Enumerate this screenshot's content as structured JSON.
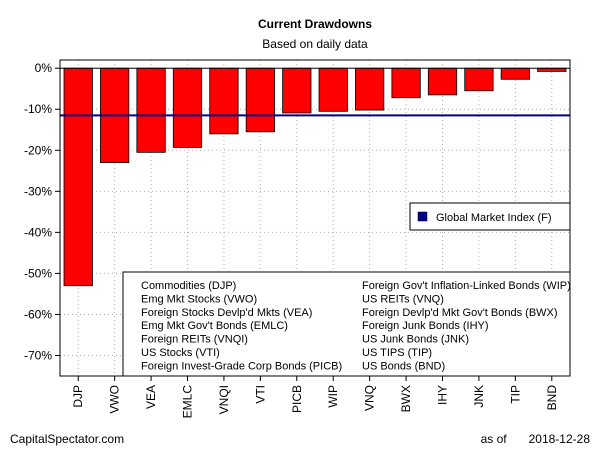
{
  "chart_data": {
    "type": "bar",
    "title": "Current Drawdowns",
    "subtitle": "Based on daily data",
    "categories": [
      "DJP",
      "VWO",
      "VEA",
      "EMLC",
      "VNQI",
      "VTI",
      "PICB",
      "WIP",
      "VNQ",
      "BWX",
      "IHY",
      "JNK",
      "TIP",
      "BND"
    ],
    "values": [
      -53,
      -23,
      -20.5,
      -19.3,
      -16,
      -15.5,
      -10.9,
      -10.5,
      -10.2,
      -7.2,
      -6.5,
      -5.5,
      -2.7,
      -0.8
    ],
    "bar_color": "#ff0000",
    "ylim": [
      -75,
      2
    ],
    "yticks": [
      0,
      -10,
      -20,
      -30,
      -40,
      -50,
      -60,
      -70
    ],
    "ytick_labels": [
      "0%",
      "-10%",
      "-20%",
      "-30%",
      "-40%",
      "-50%",
      "-60%",
      "-70%"
    ],
    "grid": true,
    "reference_line": {
      "value": -11.5,
      "label": "Global Market Index (F)",
      "color": "#00008b"
    },
    "legend_position": "bottom",
    "legend_left": [
      "Commodities (DJP)",
      "Emg Mkt Stocks (VWO)",
      "Foreign Stocks Devlp'd Mkts (VEA)",
      "Emg Mkt Gov't Bonds (EMLC)",
      "Foreign REITs (VNQI)",
      "US Stocks (VTI)",
      "Foreign Invest-Grade Corp Bonds (PICB)"
    ],
    "legend_right": [
      "Foreign Gov't Inflation-Linked Bonds (WIP)",
      "US REITs (VNQ)",
      "Foreign Devlp'd Mkt Gov't Bonds (BWX)",
      "Foreign Junk Bonds (IHY)",
      "US Junk Bonds (JNK)",
      "US TIPS (TIP)",
      "US Bonds (BND)"
    ]
  },
  "footer": {
    "source": "CapitalSpectator.com",
    "as_of_label": "as of",
    "date": "2018-12-28"
  }
}
